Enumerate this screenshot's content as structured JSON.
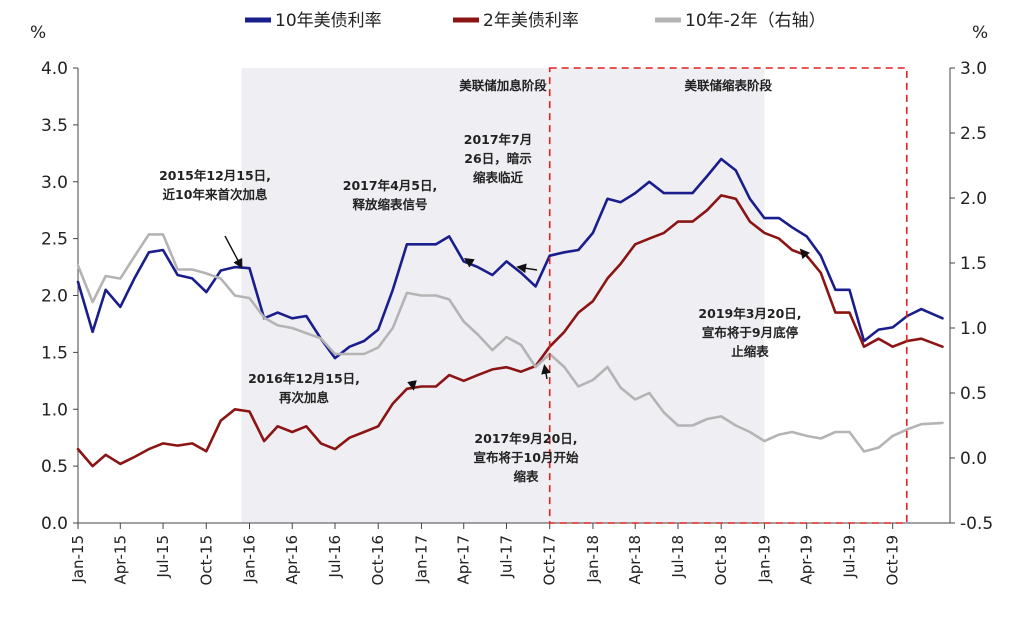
{
  "chart_data": {
    "type": "line",
    "legend": [
      {
        "label": "10年美债利率",
        "color": "#1a1e8c"
      },
      {
        "label": "2年美债利率",
        "color": "#8b1414"
      },
      {
        "label": "10年-2年（右轴）",
        "color": "#b4b4b4"
      }
    ],
    "y_left": {
      "unit": "%",
      "range": [
        0,
        4
      ],
      "ticks": [
        "0.0",
        "0.5",
        "1.0",
        "1.5",
        "2.0",
        "2.5",
        "3.0",
        "3.5",
        "4.0"
      ]
    },
    "y_right": {
      "unit": "%",
      "range": [
        -0.5,
        3
      ],
      "ticks": [
        "-0.5",
        "0.0",
        "0.5",
        "1.0",
        "1.5",
        "2.0",
        "2.5",
        "3.0"
      ]
    },
    "x_ticks": [
      "Jan-15",
      "Apr-15",
      "Jul-15",
      "Oct-15",
      "Jan-16",
      "Apr-16",
      "Jul-16",
      "Oct-16",
      "Jan-17",
      "Apr-17",
      "Jul-17",
      "Oct-17",
      "Jan-18",
      "Apr-18",
      "Jul-18",
      "Oct-18",
      "Jan-19",
      "Apr-19",
      "Jul-19",
      "Oct-19"
    ],
    "x_range": [
      "2015-01-01",
      "2020-01-31"
    ],
    "periods": [
      {
        "label": "美联储加息阶段",
        "start": "2015-12-15",
        "end": "2019-01-01",
        "style": "shaded"
      },
      {
        "label": "美联储缩表阶段",
        "start": "2017-10-01",
        "end": "2019-10-31",
        "style": "dashed-red"
      }
    ],
    "series": [
      {
        "name": "10年美债利率",
        "axis": "left",
        "color": "#1a1e8c",
        "points": [
          [
            "2015-01-01",
            2.12
          ],
          [
            "2015-02-01",
            1.68
          ],
          [
            "2015-03-01",
            2.05
          ],
          [
            "2015-04-01",
            1.9
          ],
          [
            "2015-05-01",
            2.15
          ],
          [
            "2015-06-01",
            2.38
          ],
          [
            "2015-07-01",
            2.4
          ],
          [
            "2015-08-01",
            2.18
          ],
          [
            "2015-09-01",
            2.15
          ],
          [
            "2015-10-01",
            2.03
          ],
          [
            "2015-11-01",
            2.22
          ],
          [
            "2015-12-01",
            2.25
          ],
          [
            "2016-01-01",
            2.24
          ],
          [
            "2016-02-01",
            1.8
          ],
          [
            "2016-03-01",
            1.85
          ],
          [
            "2016-04-01",
            1.8
          ],
          [
            "2016-05-01",
            1.82
          ],
          [
            "2016-06-01",
            1.62
          ],
          [
            "2016-07-01",
            1.45
          ],
          [
            "2016-08-01",
            1.55
          ],
          [
            "2016-09-01",
            1.6
          ],
          [
            "2016-10-01",
            1.7
          ],
          [
            "2016-11-01",
            2.05
          ],
          [
            "2016-12-01",
            2.45
          ],
          [
            "2017-01-01",
            2.45
          ],
          [
            "2017-02-01",
            2.45
          ],
          [
            "2017-03-01",
            2.52
          ],
          [
            "2017-04-01",
            2.3
          ],
          [
            "2017-05-01",
            2.25
          ],
          [
            "2017-06-01",
            2.18
          ],
          [
            "2017-07-01",
            2.3
          ],
          [
            "2017-08-01",
            2.2
          ],
          [
            "2017-09-01",
            2.08
          ],
          [
            "2017-10-01",
            2.35
          ],
          [
            "2017-11-01",
            2.38
          ],
          [
            "2017-12-01",
            2.4
          ],
          [
            "2018-01-01",
            2.55
          ],
          [
            "2018-02-01",
            2.85
          ],
          [
            "2018-03-01",
            2.82
          ],
          [
            "2018-04-01",
            2.9
          ],
          [
            "2018-05-01",
            3.0
          ],
          [
            "2018-06-01",
            2.9
          ],
          [
            "2018-07-01",
            2.9
          ],
          [
            "2018-08-01",
            2.9
          ],
          [
            "2018-09-01",
            3.05
          ],
          [
            "2018-10-01",
            3.2
          ],
          [
            "2018-11-01",
            3.1
          ],
          [
            "2018-12-01",
            2.85
          ],
          [
            "2019-01-01",
            2.68
          ],
          [
            "2019-02-01",
            2.68
          ],
          [
            "2019-03-01",
            2.6
          ],
          [
            "2019-04-01",
            2.52
          ],
          [
            "2019-05-01",
            2.35
          ],
          [
            "2019-06-01",
            2.05
          ],
          [
            "2019-07-01",
            2.05
          ],
          [
            "2019-08-01",
            1.6
          ],
          [
            "2019-09-01",
            1.7
          ],
          [
            "2019-10-01",
            1.72
          ],
          [
            "2019-11-01",
            1.82
          ],
          [
            "2019-12-01",
            1.88
          ],
          [
            "2020-01-15",
            1.8
          ]
        ]
      },
      {
        "name": "2年美债利率",
        "axis": "left",
        "color": "#8b1414",
        "points": [
          [
            "2015-01-01",
            0.65
          ],
          [
            "2015-02-01",
            0.5
          ],
          [
            "2015-03-01",
            0.6
          ],
          [
            "2015-04-01",
            0.52
          ],
          [
            "2015-05-01",
            0.58
          ],
          [
            "2015-06-01",
            0.65
          ],
          [
            "2015-07-01",
            0.7
          ],
          [
            "2015-08-01",
            0.68
          ],
          [
            "2015-09-01",
            0.7
          ],
          [
            "2015-10-01",
            0.63
          ],
          [
            "2015-11-01",
            0.9
          ],
          [
            "2015-12-01",
            1.0
          ],
          [
            "2016-01-01",
            0.98
          ],
          [
            "2016-02-01",
            0.72
          ],
          [
            "2016-03-01",
            0.85
          ],
          [
            "2016-04-01",
            0.8
          ],
          [
            "2016-05-01",
            0.85
          ],
          [
            "2016-06-01",
            0.7
          ],
          [
            "2016-07-01",
            0.65
          ],
          [
            "2016-08-01",
            0.75
          ],
          [
            "2016-09-01",
            0.8
          ],
          [
            "2016-10-01",
            0.85
          ],
          [
            "2016-11-01",
            1.05
          ],
          [
            "2016-12-01",
            1.18
          ],
          [
            "2017-01-01",
            1.2
          ],
          [
            "2017-02-01",
            1.2
          ],
          [
            "2017-03-01",
            1.3
          ],
          [
            "2017-04-01",
            1.25
          ],
          [
            "2017-05-01",
            1.3
          ],
          [
            "2017-06-01",
            1.35
          ],
          [
            "2017-07-01",
            1.37
          ],
          [
            "2017-08-01",
            1.33
          ],
          [
            "2017-09-01",
            1.38
          ],
          [
            "2017-10-01",
            1.55
          ],
          [
            "2017-11-01",
            1.68
          ],
          [
            "2017-12-01",
            1.85
          ],
          [
            "2018-01-01",
            1.95
          ],
          [
            "2018-02-01",
            2.15
          ],
          [
            "2018-03-01",
            2.28
          ],
          [
            "2018-04-01",
            2.45
          ],
          [
            "2018-05-01",
            2.5
          ],
          [
            "2018-06-01",
            2.55
          ],
          [
            "2018-07-01",
            2.65
          ],
          [
            "2018-08-01",
            2.65
          ],
          [
            "2018-09-01",
            2.75
          ],
          [
            "2018-10-01",
            2.88
          ],
          [
            "2018-11-01",
            2.85
          ],
          [
            "2018-12-01",
            2.65
          ],
          [
            "2019-01-01",
            2.55
          ],
          [
            "2019-02-01",
            2.5
          ],
          [
            "2019-03-01",
            2.4
          ],
          [
            "2019-04-01",
            2.35
          ],
          [
            "2019-05-01",
            2.2
          ],
          [
            "2019-06-01",
            1.85
          ],
          [
            "2019-07-01",
            1.85
          ],
          [
            "2019-08-01",
            1.55
          ],
          [
            "2019-09-01",
            1.62
          ],
          [
            "2019-10-01",
            1.55
          ],
          [
            "2019-11-01",
            1.6
          ],
          [
            "2019-12-01",
            1.62
          ],
          [
            "2020-01-15",
            1.55
          ]
        ]
      },
      {
        "name": "10年-2年（右轴）",
        "axis": "right",
        "color": "#b4b4b4",
        "points": [
          [
            "2015-01-01",
            1.48
          ],
          [
            "2015-02-01",
            1.2
          ],
          [
            "2015-03-01",
            1.4
          ],
          [
            "2015-04-01",
            1.38
          ],
          [
            "2015-05-01",
            1.55
          ],
          [
            "2015-06-01",
            1.72
          ],
          [
            "2015-07-01",
            1.72
          ],
          [
            "2015-08-01",
            1.45
          ],
          [
            "2015-09-01",
            1.45
          ],
          [
            "2015-10-01",
            1.42
          ],
          [
            "2015-11-01",
            1.38
          ],
          [
            "2015-12-01",
            1.25
          ],
          [
            "2016-01-01",
            1.23
          ],
          [
            "2016-02-01",
            1.08
          ],
          [
            "2016-03-01",
            1.02
          ],
          [
            "2016-04-01",
            1.0
          ],
          [
            "2016-05-01",
            0.96
          ],
          [
            "2016-06-01",
            0.92
          ],
          [
            "2016-07-01",
            0.8
          ],
          [
            "2016-08-01",
            0.8
          ],
          [
            "2016-09-01",
            0.8
          ],
          [
            "2016-10-01",
            0.85
          ],
          [
            "2016-11-01",
            1.0
          ],
          [
            "2016-12-01",
            1.27
          ],
          [
            "2017-01-01",
            1.25
          ],
          [
            "2017-02-01",
            1.25
          ],
          [
            "2017-03-01",
            1.22
          ],
          [
            "2017-04-01",
            1.05
          ],
          [
            "2017-05-01",
            0.95
          ],
          [
            "2017-06-01",
            0.83
          ],
          [
            "2017-07-01",
            0.93
          ],
          [
            "2017-08-01",
            0.87
          ],
          [
            "2017-09-01",
            0.7
          ],
          [
            "2017-10-01",
            0.8
          ],
          [
            "2017-11-01",
            0.7
          ],
          [
            "2017-12-01",
            0.55
          ],
          [
            "2018-01-01",
            0.6
          ],
          [
            "2018-02-01",
            0.7
          ],
          [
            "2018-03-01",
            0.54
          ],
          [
            "2018-04-01",
            0.45
          ],
          [
            "2018-05-01",
            0.5
          ],
          [
            "2018-06-01",
            0.35
          ],
          [
            "2018-07-01",
            0.25
          ],
          [
            "2018-08-01",
            0.25
          ],
          [
            "2018-09-01",
            0.3
          ],
          [
            "2018-10-01",
            0.32
          ],
          [
            "2018-11-01",
            0.25
          ],
          [
            "2018-12-01",
            0.2
          ],
          [
            "2019-01-01",
            0.13
          ],
          [
            "2019-02-01",
            0.18
          ],
          [
            "2019-03-01",
            0.2
          ],
          [
            "2019-04-01",
            0.17
          ],
          [
            "2019-05-01",
            0.15
          ],
          [
            "2019-06-01",
            0.2
          ],
          [
            "2019-07-01",
            0.2
          ],
          [
            "2019-08-01",
            0.05
          ],
          [
            "2019-09-01",
            0.08
          ],
          [
            "2019-10-01",
            0.17
          ],
          [
            "2019-11-01",
            0.22
          ],
          [
            "2019-12-01",
            0.26
          ],
          [
            "2020-01-15",
            0.27
          ]
        ]
      }
    ],
    "annotations": [
      {
        "lines": [
          "2015年12月15日,",
          "近10年来首次加息"
        ],
        "date": "2015-12-15",
        "value": 2.25,
        "axis": "left",
        "text_anchor": "above"
      },
      {
        "lines": [
          "2017年4月5日,",
          "释放缩表信号"
        ],
        "date": "2017-04-05",
        "value": 2.32,
        "axis": "left",
        "text_anchor": "above"
      },
      {
        "lines": [
          "2017年7月",
          "26日，暗示",
          "缩表临近"
        ],
        "date": "2017-07-26",
        "value": 2.25,
        "axis": "left",
        "text_anchor": "above"
      },
      {
        "lines": [
          "2016年12月15日,",
          "再次加息"
        ],
        "date": "2016-12-15",
        "value": 1.18,
        "axis": "left",
        "text_anchor": "below"
      },
      {
        "lines": [
          "2017年9月20日,",
          "宣布将于10月开始",
          "缩表"
        ],
        "date": "2017-09-20",
        "value": 1.38,
        "axis": "left",
        "text_anchor": "below"
      },
      {
        "lines": [
          "2019年3月20日,",
          "宣布将于9月底停",
          "止缩表"
        ],
        "date": "2019-03-20",
        "value": 2.4,
        "axis": "left",
        "text_anchor": "below"
      }
    ]
  }
}
